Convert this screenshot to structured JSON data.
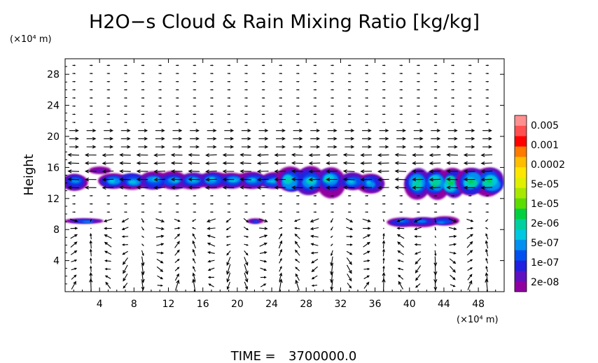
{
  "chart_data": {
    "type": "heatmap",
    "title": "H2O−s Cloud & Rain Mixing Ratio [kg/kg]",
    "ylabel": "Height",
    "xunit": "(×10⁴ m)",
    "yunit": "(×10⁴ m)",
    "xlim": [
      0,
      51
    ],
    "ylim": [
      0,
      30
    ],
    "x_ticks": [
      4,
      8,
      12,
      16,
      20,
      24,
      28,
      32,
      36,
      40,
      44,
      48
    ],
    "y_ticks": [
      4,
      8,
      12,
      16,
      20,
      24,
      28
    ],
    "time_label": "TIME",
    "time_value": "3700000.0",
    "colorbar": {
      "labels": [
        "0.005",
        "0.001",
        "0.0002",
        "5e-05",
        "1e-05",
        "2e-06",
        "5e-07",
        "1e-07",
        "2e-08"
      ],
      "colors": [
        "#ff9090",
        "#ff5050",
        "#ff0000",
        "#ff7a00",
        "#ffbe00",
        "#ffe600",
        "#e0f000",
        "#a8e800",
        "#5cdc00",
        "#00d040",
        "#00d0a0",
        "#00c8e0",
        "#0090f0",
        "#0050f0",
        "#2020e0",
        "#6010c0",
        "#9000a0"
      ],
      "orientation": "vertical",
      "placement": "right"
    },
    "grid": false,
    "cloud_regions": [
      {
        "x": [
          0,
          2.2
        ],
        "y": [
          12.9,
          15.3
        ],
        "level": 4
      },
      {
        "x": [
          3.5,
          5.0
        ],
        "y": [
          15.1,
          16.0
        ],
        "level": 1
      },
      {
        "x": [
          4.5,
          25.3
        ],
        "y": [
          13.2,
          15.4
        ],
        "level": 5
      },
      {
        "x": [
          25.0,
          31.8
        ],
        "y": [
          12.5,
          16.2
        ],
        "level": 6
      },
      {
        "x": [
          32.5,
          36.5
        ],
        "y": [
          12.8,
          15.2
        ],
        "level": 5
      },
      {
        "x": [
          40.0,
          46.0
        ],
        "y": [
          12.0,
          16.0
        ],
        "level": 7
      },
      {
        "x": [
          46.0,
          50.5
        ],
        "y": [
          12.3,
          16.0
        ],
        "level": 7
      },
      {
        "x": [
          0.8,
          4.0
        ],
        "y": [
          8.7,
          9.4
        ],
        "level": 4
      },
      {
        "x": [
          21.5,
          22.6
        ],
        "y": [
          8.7,
          9.4
        ],
        "level": 3
      },
      {
        "x": [
          38.0,
          45.0
        ],
        "y": [
          8.4,
          9.6
        ],
        "level": 4
      }
    ],
    "wind_vectors": "arrow field overlay (u, w) on regular grid"
  }
}
